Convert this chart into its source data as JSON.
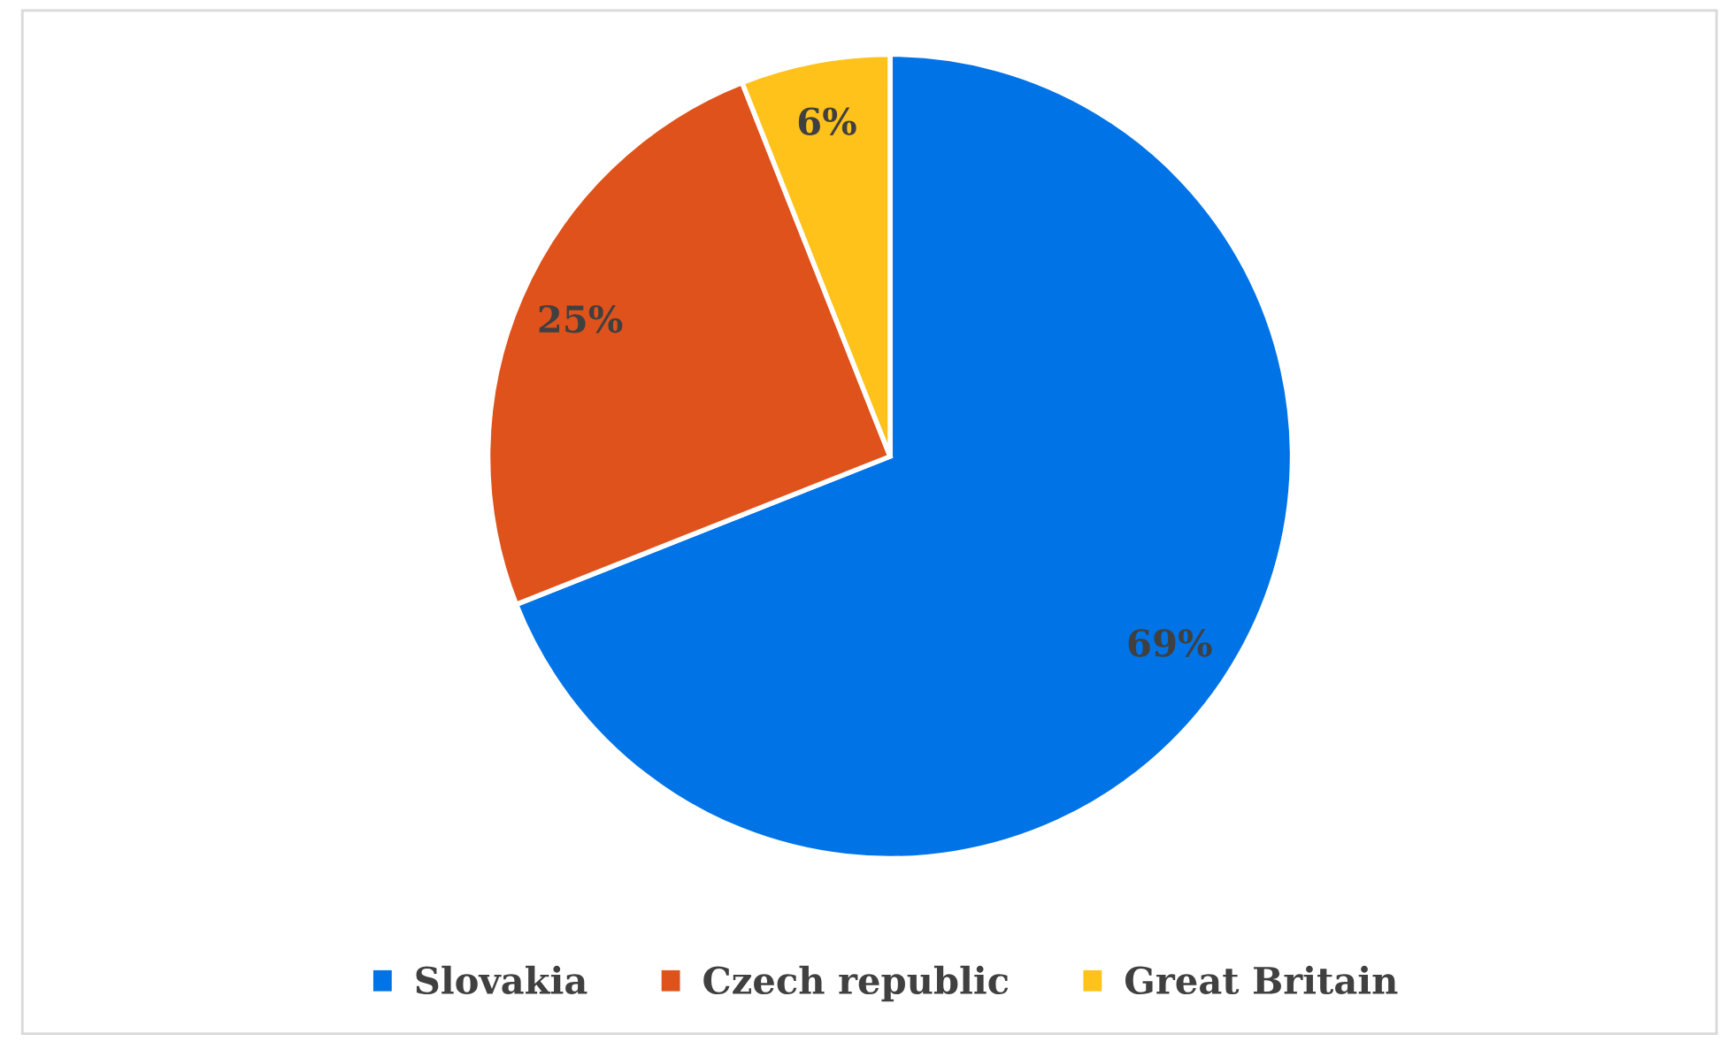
{
  "chart_data": {
    "type": "pie",
    "categories": [
      "Slovakia",
      "Czech republic",
      "Great Britain"
    ],
    "values": [
      69,
      25,
      6
    ],
    "colors": [
      "#0073e6",
      "#e0521b",
      "#ffc21a"
    ],
    "value_labels": [
      "69%",
      "25%",
      "6%"
    ],
    "legend": "bottom"
  }
}
